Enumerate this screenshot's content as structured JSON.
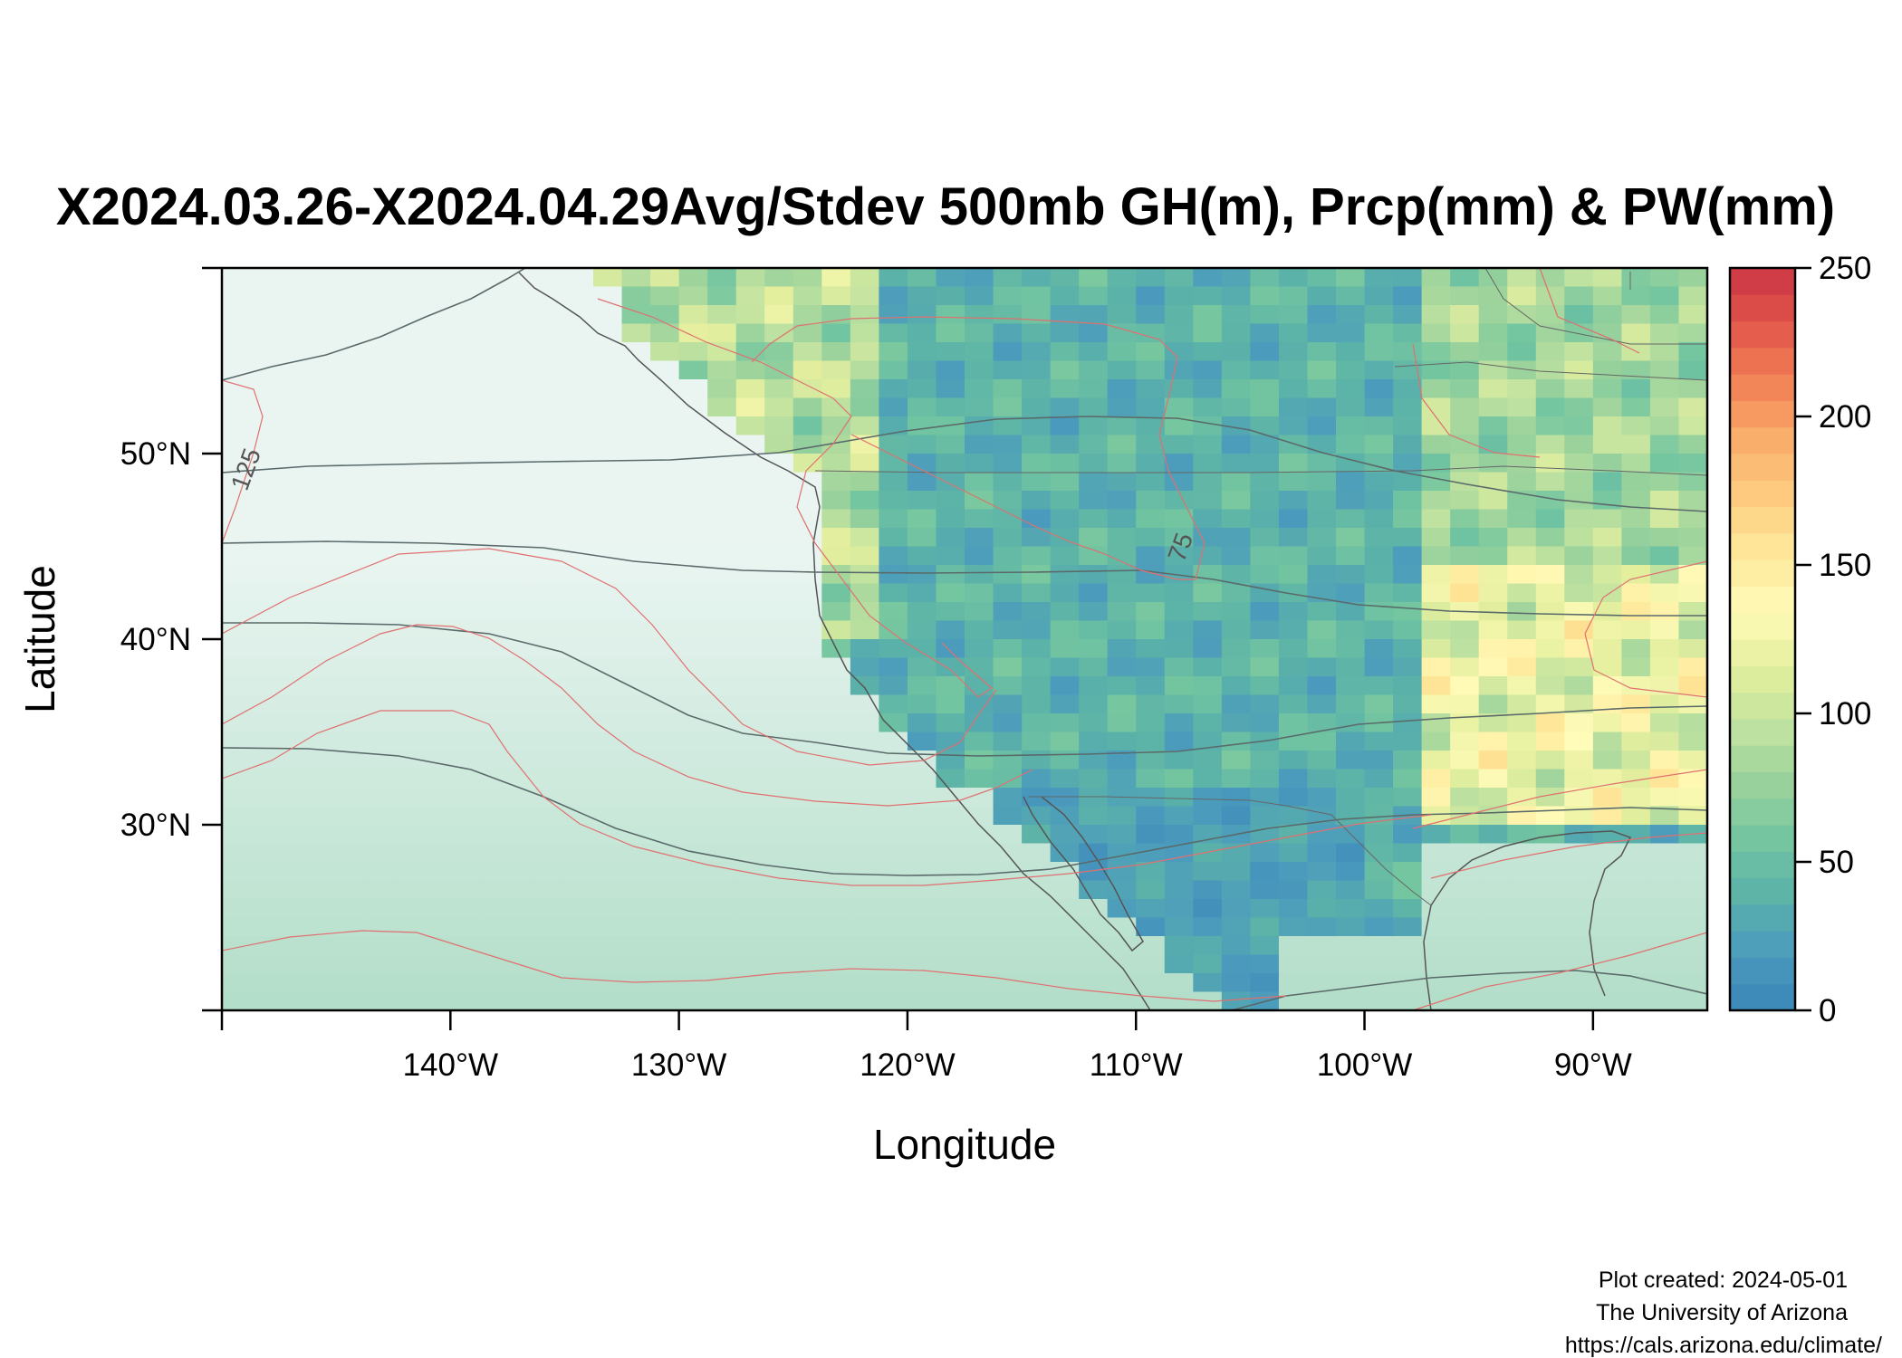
{
  "title": "X2024.03.26-X2024.04.29Avg/Stdev 500mb GH(m), Prcp(mm) & PW(mm)",
  "chart_data": {
    "type": "heatmap",
    "title": "X2024.03.26-X2024.04.29Avg/Stdev 500mb GH(m), Prcp(mm) & PW(mm)",
    "xlabel": "Longitude",
    "ylabel": "Latitude",
    "xlim": [
      -150,
      -85
    ],
    "ylim": [
      20,
      60
    ],
    "x_ticks": [
      {
        "value": -140,
        "label": "140°W"
      },
      {
        "value": -130,
        "label": "130°W"
      },
      {
        "value": -120,
        "label": "120°W"
      },
      {
        "value": -110,
        "label": "110°W"
      },
      {
        "value": -100,
        "label": "100°W"
      },
      {
        "value": -90,
        "label": "90°W"
      }
    ],
    "y_ticks": [
      {
        "value": 30,
        "label": "30°N"
      },
      {
        "value": 40,
        "label": "40°N"
      },
      {
        "value": 50,
        "label": "50°N"
      }
    ],
    "colorbar": {
      "range": [
        0,
        250
      ],
      "ticks": [
        {
          "value": 0,
          "label": "0"
        },
        {
          "value": 50,
          "label": "50"
        },
        {
          "value": 100,
          "label": "100"
        },
        {
          "value": 150,
          "label": "150"
        },
        {
          "value": 200,
          "label": "200"
        },
        {
          "value": 250,
          "label": "250"
        }
      ],
      "colors": [
        "#3a85b8",
        "#4b9bbd",
        "#5bb2a8",
        "#74c6a0",
        "#9ad29c",
        "#c2e3a0",
        "#e4ef9e",
        "#fffbb8",
        "#fee89a",
        "#fdcc80",
        "#f9ad6b",
        "#f28256",
        "#e2564a",
        "#cc3645"
      ]
    },
    "contour_labels": [
      {
        "label": "125",
        "lon": -148.6,
        "lat": 49
      },
      {
        "label": "75",
        "lon": -107.7,
        "lat": 44.8
      }
    ],
    "note": "Precipitation field shown as gridded colored cells; geopotential height contours (gray) and standard deviation contours (red)."
  },
  "credits": {
    "line1": "Plot created: 2024-05-01",
    "line2": "The University of Arizona",
    "line3": "https://cals.arizona.edu/climate/"
  },
  "colors": {
    "gh_contour": "#5a6a6a",
    "stdev_contour": "#e07070",
    "coastline": "#555555"
  }
}
